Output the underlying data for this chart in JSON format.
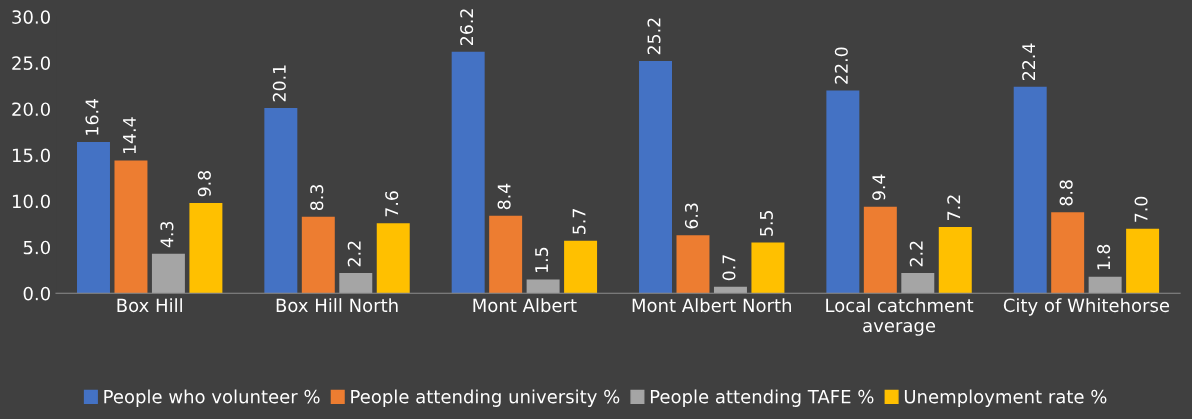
{
  "chart_data": {
    "type": "bar",
    "categories": [
      "Box Hill",
      "Box Hill North",
      "Mont Albert",
      "Mont Albert North",
      "Local catchment\naverage",
      "City of Whitehorse"
    ],
    "series": [
      {
        "name": "People who volunteer %",
        "color": "#4472c4",
        "values": [
          16.4,
          20.1,
          26.2,
          25.2,
          22.0,
          22.4
        ],
        "value_labels": [
          "16.4",
          "20.1",
          "26.2",
          "25.2",
          "22.0",
          "22.4"
        ]
      },
      {
        "name": "People attending university %",
        "color": "#ed7d31",
        "values": [
          14.4,
          8.3,
          8.4,
          6.3,
          9.4,
          8.8
        ],
        "value_labels": [
          "14.4",
          "8.3",
          "8.4",
          "6.3",
          "9.4",
          "8.8"
        ]
      },
      {
        "name": "People attending TAFE %",
        "color": "#a5a5a5",
        "values": [
          4.3,
          2.2,
          1.5,
          0.7,
          2.2,
          1.8
        ],
        "value_labels": [
          "4.3",
          "2.2",
          "1.5",
          "0.7",
          "2.2",
          "1.8"
        ]
      },
      {
        "name": "Unemployment rate %",
        "color": "#ffc000",
        "values": [
          9.8,
          7.6,
          5.7,
          5.5,
          7.2,
          7.0
        ],
        "value_labels": [
          "9.8",
          "7.6",
          "5.7",
          "5.5",
          "7.2",
          "7.0"
        ]
      }
    ],
    "ylim": [
      0,
      30
    ],
    "yticks": [
      {
        "value": 0,
        "label": "0.0"
      },
      {
        "value": 5,
        "label": "5.0"
      },
      {
        "value": 10,
        "label": "10.0"
      },
      {
        "value": 15,
        "label": "15.0"
      },
      {
        "value": 20,
        "label": "20.0"
      },
      {
        "value": 25,
        "label": "25.0"
      },
      {
        "value": 30,
        "label": "30.0"
      }
    ],
    "grid": false,
    "legend": "bottom"
  }
}
